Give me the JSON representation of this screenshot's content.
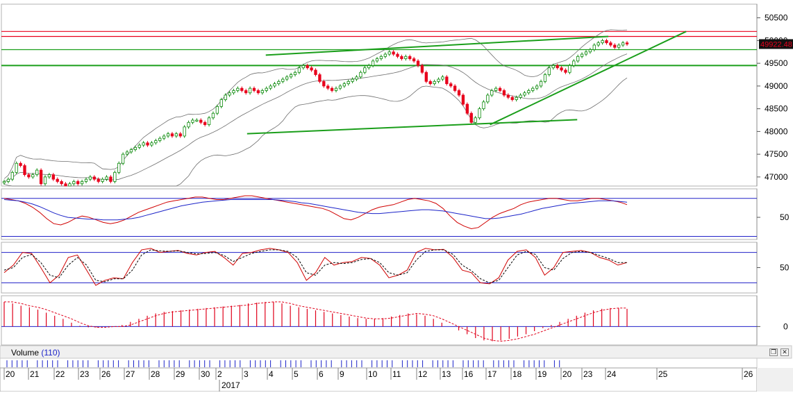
{
  "price_panel": {
    "y_ticks": [
      "50500",
      "50000",
      "49500",
      "49000",
      "48500",
      "48000",
      "47500",
      "47000"
    ],
    "last_price": "49922.48",
    "colors": {
      "up": "#0a8a0a",
      "down": "#e8001c",
      "trendline": "#1a9e1a",
      "band": "#6e6e6e",
      "resistance": "#e8001c"
    }
  },
  "rsi_panel": {
    "y_ticks": [
      "50"
    ]
  },
  "stoch_panel": {
    "y_ticks": [
      "50"
    ]
  },
  "macd_panel": {
    "y_ticks": [
      "0"
    ]
  },
  "volume_panel": {
    "label": "Volume",
    "count": "(110)",
    "buttons": [
      "restore-icon",
      "close-icon"
    ]
  },
  "x_axis": {
    "day_labels": [
      "20",
      "21",
      "22",
      "23",
      "26",
      "27",
      "28",
      "29",
      "30",
      "2",
      "3",
      "4",
      "5",
      "6",
      "9",
      "10",
      "11",
      "12",
      "13",
      "16",
      "17",
      "18",
      "19",
      "20",
      "23",
      "24",
      "25",
      "26"
    ],
    "year_label": "2017"
  },
  "chart_data": [
    {
      "type": "candlestick",
      "title": "",
      "ylim": [
        46800,
        50800
      ],
      "last_price": 49922.48,
      "grid": false,
      "resistance_lines": [
        50200,
        50090,
        49800,
        49450
      ],
      "closes": [
        46900,
        46950,
        47100,
        47300,
        47250,
        47050,
        47000,
        47050,
        47150,
        46850,
        47000,
        47050,
        46950,
        46900,
        46850,
        46800,
        46850,
        46900,
        46850,
        46900,
        46950,
        47000,
        46950,
        46900,
        46950,
        47000,
        46900,
        47100,
        47300,
        47500,
        47550,
        47600,
        47650,
        47700,
        47750,
        47700,
        47750,
        47800,
        47850,
        47900,
        47950,
        47900,
        47950,
        47900,
        48100,
        48200,
        48250,
        48250,
        48200,
        48150,
        48300,
        48400,
        48550,
        48700,
        48800,
        48850,
        48900,
        48950,
        48900,
        48850,
        48950,
        48900,
        48850,
        48900,
        48950,
        49000,
        49050,
        49100,
        49150,
        49200,
        49250,
        49300,
        49400,
        49450,
        49400,
        49350,
        49250,
        49100,
        49000,
        48950,
        48900,
        48950,
        49000,
        49050,
        49100,
        49150,
        49200,
        49300,
        49400,
        49450,
        49550,
        49600,
        49650,
        49700,
        49750,
        49700,
        49650,
        49600,
        49650,
        49600,
        49550,
        49450,
        49300,
        49100,
        49050,
        49100,
        49150,
        49200,
        49050,
        49000,
        48900,
        48800,
        48600,
        48400,
        48200,
        48300,
        48500,
        48650,
        48800,
        48900,
        48950,
        48900,
        48800,
        48750,
        48700,
        48750,
        48800,
        48850,
        48900,
        48950,
        49000,
        49100,
        49250,
        49400,
        49450,
        49400,
        49350,
        49300,
        49450,
        49550,
        49650,
        49700,
        49750,
        49800,
        49900,
        49950,
        50000,
        49950,
        49900,
        49850,
        49900,
        49950,
        49922.48
      ]
    },
    {
      "type": "line",
      "title": "",
      "y_ticks": [
        50
      ],
      "ylim": [
        15,
        95
      ],
      "hlines": [
        80,
        20
      ],
      "series": [
        {
          "values": [
            80,
            78,
            76,
            72,
            66,
            58,
            48,
            40,
            38,
            42,
            48,
            52,
            50,
            46,
            42,
            40,
            42,
            46,
            52,
            58,
            62,
            66,
            70,
            74,
            76,
            78,
            80,
            82,
            82,
            80,
            78,
            78,
            80,
            82,
            84,
            84,
            82,
            80,
            78,
            76,
            74,
            72,
            70,
            68,
            66,
            64,
            60,
            54,
            48,
            46,
            50,
            56,
            62,
            66,
            68,
            70,
            74,
            78,
            80,
            78,
            76,
            72,
            64,
            52,
            42,
            36,
            32,
            34,
            42,
            50,
            56,
            60,
            64,
            70,
            74,
            76,
            78,
            80,
            80,
            78,
            76,
            76,
            78,
            80,
            80,
            78,
            76,
            74,
            70
          ]
        },
        {
          "values": [
            78,
            77,
            76,
            74,
            71,
            67,
            62,
            57,
            53,
            50,
            49,
            48,
            47,
            47,
            46,
            46,
            46,
            47,
            48,
            50,
            53,
            56,
            59,
            62,
            65,
            68,
            70,
            72,
            74,
            75,
            76,
            77,
            78,
            78,
            78,
            78,
            78,
            78,
            78,
            77,
            76,
            75,
            73,
            72,
            70,
            68,
            66,
            64,
            62,
            60,
            58,
            57,
            56,
            56,
            57,
            58,
            59,
            60,
            61,
            62,
            62,
            61,
            60,
            58,
            56,
            54,
            52,
            50,
            48,
            48,
            49,
            51,
            53,
            55,
            58,
            61,
            64,
            66,
            68,
            70,
            72,
            73,
            74,
            75,
            76,
            76,
            76,
            75,
            74
          ]
        }
      ]
    },
    {
      "type": "line",
      "title": "",
      "y_ticks": [
        50
      ],
      "ylim": [
        0,
        100
      ],
      "hlines": [
        80,
        20
      ],
      "series": [
        {
          "values": [
            40,
            55,
            80,
            78,
            50,
            20,
            35,
            70,
            75,
            45,
            15,
            25,
            30,
            28,
            60,
            85,
            88,
            80,
            82,
            84,
            78,
            75,
            80,
            82,
            70,
            55,
            78,
            80,
            85,
            88,
            85,
            80,
            60,
            25,
            40,
            70,
            55,
            60,
            62,
            70,
            68,
            55,
            30,
            35,
            45,
            80,
            88,
            85,
            86,
            70,
            45,
            40,
            20,
            18,
            30,
            65,
            82,
            85,
            70,
            35,
            50,
            80,
            82,
            84,
            80,
            70,
            65,
            55,
            60
          ]
        },
        {
          "values": [
            45,
            50,
            70,
            76,
            60,
            35,
            30,
            55,
            70,
            55,
            25,
            22,
            28,
            28,
            45,
            75,
            85,
            83,
            82,
            83,
            80,
            77,
            78,
            80,
            74,
            62,
            70,
            78,
            82,
            85,
            85,
            82,
            70,
            40,
            35,
            55,
            60,
            58,
            60,
            66,
            68,
            60,
            40,
            35,
            40,
            65,
            82,
            85,
            85,
            76,
            55,
            44,
            28,
            20,
            25,
            50,
            75,
            82,
            76,
            50,
            45,
            68,
            80,
            82,
            80,
            74,
            68,
            60,
            60
          ]
        }
      ]
    },
    {
      "type": "bar",
      "title": "",
      "y_ticks": [
        0
      ],
      "ylim": [
        -24,
        40
      ],
      "values": [
        32,
        30,
        27,
        25,
        22,
        18,
        14,
        10,
        5,
        1,
        -1,
        -1,
        0,
        0,
        2,
        6,
        10,
        14,
        17,
        19,
        20,
        21,
        22,
        23,
        24,
        25,
        26,
        27,
        28,
        30,
        31,
        32,
        32,
        30,
        27,
        25,
        23,
        21,
        19,
        17,
        15,
        13,
        11,
        10,
        10,
        11,
        13,
        15,
        17,
        16,
        14,
        10,
        5,
        0,
        -5,
        -10,
        -15,
        -18,
        -19,
        -18,
        -16,
        -13,
        -10,
        -6,
        -2,
        2,
        6,
        10,
        14,
        18,
        21,
        23,
        24,
        24,
        23
      ]
    }
  ]
}
